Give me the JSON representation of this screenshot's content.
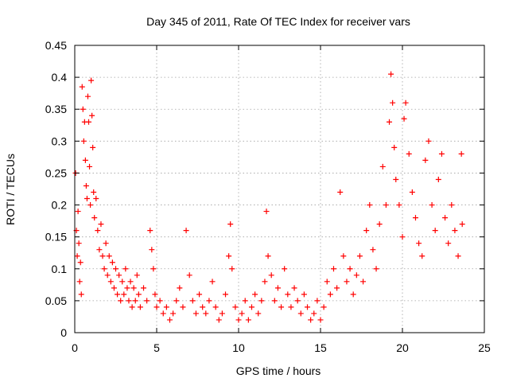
{
  "chart_data": {
    "type": "scatter",
    "title": "Day 345 of 2011, Rate Of TEC Index for receiver vars",
    "xlabel": "GPS time / hours",
    "ylabel": "ROTI / TECUs",
    "xlim": [
      0,
      25
    ],
    "ylim": [
      0,
      0.45
    ],
    "xticks": [
      0,
      5,
      10,
      15,
      20,
      25
    ],
    "xtick_labels": [
      "0",
      "5",
      "10",
      "15",
      "20",
      "25"
    ],
    "yticks": [
      0,
      0.05,
      0.1,
      0.15,
      0.2,
      0.25,
      0.3,
      0.35,
      0.4,
      0.45
    ],
    "ytick_labels": [
      "0",
      "0.05",
      "0.1",
      "0.15",
      "0.2",
      "0.25",
      "0.3",
      "0.35",
      "0.4",
      "0.45"
    ],
    "grid": true,
    "marker": "+",
    "marker_color": "#ff0000",
    "series": [
      {
        "points": [
          [
            0.05,
            0.25
          ],
          [
            0.1,
            0.16
          ],
          [
            0.15,
            0.12
          ],
          [
            0.2,
            0.19
          ],
          [
            0.25,
            0.14
          ],
          [
            0.3,
            0.08
          ],
          [
            0.35,
            0.11
          ],
          [
            0.4,
            0.06
          ],
          [
            0.45,
            0.385
          ],
          [
            0.5,
            0.35
          ],
          [
            0.55,
            0.3
          ],
          [
            0.6,
            0.33
          ],
          [
            0.65,
            0.27
          ],
          [
            0.7,
            0.23
          ],
          [
            0.75,
            0.21
          ],
          [
            0.8,
            0.37
          ],
          [
            0.85,
            0.33
          ],
          [
            0.9,
            0.26
          ],
          [
            0.95,
            0.2
          ],
          [
            1.0,
            0.395
          ],
          [
            1.05,
            0.34
          ],
          [
            1.1,
            0.29
          ],
          [
            1.15,
            0.22
          ],
          [
            1.2,
            0.18
          ],
          [
            1.3,
            0.21
          ],
          [
            1.4,
            0.16
          ],
          [
            1.5,
            0.13
          ],
          [
            1.6,
            0.17
          ],
          [
            1.7,
            0.12
          ],
          [
            1.8,
            0.1
          ],
          [
            1.9,
            0.14
          ],
          [
            2.0,
            0.09
          ],
          [
            2.1,
            0.12
          ],
          [
            2.2,
            0.08
          ],
          [
            2.3,
            0.11
          ],
          [
            2.4,
            0.07
          ],
          [
            2.5,
            0.1
          ],
          [
            2.6,
            0.06
          ],
          [
            2.7,
            0.09
          ],
          [
            2.8,
            0.05
          ],
          [
            2.9,
            0.08
          ],
          [
            3.0,
            0.06
          ],
          [
            3.1,
            0.1
          ],
          [
            3.2,
            0.07
          ],
          [
            3.3,
            0.05
          ],
          [
            3.4,
            0.08
          ],
          [
            3.5,
            0.04
          ],
          [
            3.6,
            0.07
          ],
          [
            3.7,
            0.05
          ],
          [
            3.8,
            0.09
          ],
          [
            3.9,
            0.06
          ],
          [
            4.0,
            0.04
          ],
          [
            4.2,
            0.07
          ],
          [
            4.4,
            0.05
          ],
          [
            4.6,
            0.16
          ],
          [
            4.7,
            0.13
          ],
          [
            4.8,
            0.1
          ],
          [
            4.9,
            0.06
          ],
          [
            5.0,
            0.04
          ],
          [
            5.2,
            0.05
          ],
          [
            5.4,
            0.03
          ],
          [
            5.6,
            0.04
          ],
          [
            5.8,
            0.02
          ],
          [
            6.0,
            0.03
          ],
          [
            6.2,
            0.05
          ],
          [
            6.4,
            0.07
          ],
          [
            6.6,
            0.04
          ],
          [
            6.8,
            0.16
          ],
          [
            7.0,
            0.09
          ],
          [
            7.2,
            0.05
          ],
          [
            7.4,
            0.03
          ],
          [
            7.6,
            0.06
          ],
          [
            7.8,
            0.04
          ],
          [
            8.0,
            0.03
          ],
          [
            8.2,
            0.05
          ],
          [
            8.4,
            0.08
          ],
          [
            8.6,
            0.04
          ],
          [
            8.8,
            0.02
          ],
          [
            9.0,
            0.03
          ],
          [
            9.2,
            0.06
          ],
          [
            9.4,
            0.12
          ],
          [
            9.5,
            0.17
          ],
          [
            9.6,
            0.1
          ],
          [
            9.8,
            0.04
          ],
          [
            10.0,
            0.02
          ],
          [
            10.2,
            0.03
          ],
          [
            10.4,
            0.05
          ],
          [
            10.6,
            0.02
          ],
          [
            10.8,
            0.04
          ],
          [
            11.0,
            0.06
          ],
          [
            11.2,
            0.03
          ],
          [
            11.4,
            0.05
          ],
          [
            11.6,
            0.08
          ],
          [
            11.7,
            0.19
          ],
          [
            11.8,
            0.12
          ],
          [
            12.0,
            0.09
          ],
          [
            12.2,
            0.05
          ],
          [
            12.4,
            0.07
          ],
          [
            12.6,
            0.04
          ],
          [
            12.8,
            0.1
          ],
          [
            13.0,
            0.06
          ],
          [
            13.2,
            0.04
          ],
          [
            13.4,
            0.07
          ],
          [
            13.6,
            0.05
          ],
          [
            13.8,
            0.03
          ],
          [
            14.0,
            0.06
          ],
          [
            14.2,
            0.04
          ],
          [
            14.4,
            0.02
          ],
          [
            14.6,
            0.03
          ],
          [
            14.8,
            0.05
          ],
          [
            15.0,
            0.02
          ],
          [
            15.2,
            0.04
          ],
          [
            15.4,
            0.08
          ],
          [
            15.6,
            0.06
          ],
          [
            15.8,
            0.1
          ],
          [
            16.0,
            0.07
          ],
          [
            16.2,
            0.22
          ],
          [
            16.4,
            0.12
          ],
          [
            16.6,
            0.08
          ],
          [
            16.8,
            0.1
          ],
          [
            17.0,
            0.06
          ],
          [
            17.2,
            0.09
          ],
          [
            17.4,
            0.12
          ],
          [
            17.6,
            0.08
          ],
          [
            17.8,
            0.16
          ],
          [
            18.0,
            0.2
          ],
          [
            18.2,
            0.13
          ],
          [
            18.4,
            0.1
          ],
          [
            18.6,
            0.17
          ],
          [
            18.8,
            0.26
          ],
          [
            19.0,
            0.2
          ],
          [
            19.2,
            0.33
          ],
          [
            19.3,
            0.405
          ],
          [
            19.4,
            0.36
          ],
          [
            19.5,
            0.29
          ],
          [
            19.6,
            0.24
          ],
          [
            19.8,
            0.2
          ],
          [
            20.0,
            0.15
          ],
          [
            20.1,
            0.335
          ],
          [
            20.2,
            0.36
          ],
          [
            20.4,
            0.28
          ],
          [
            20.6,
            0.22
          ],
          [
            20.8,
            0.18
          ],
          [
            21.0,
            0.14
          ],
          [
            21.2,
            0.12
          ],
          [
            21.4,
            0.27
          ],
          [
            21.6,
            0.3
          ],
          [
            21.8,
            0.2
          ],
          [
            22.0,
            0.16
          ],
          [
            22.2,
            0.24
          ],
          [
            22.4,
            0.28
          ],
          [
            22.6,
            0.18
          ],
          [
            22.8,
            0.14
          ],
          [
            23.0,
            0.2
          ],
          [
            23.2,
            0.16
          ],
          [
            23.4,
            0.12
          ],
          [
            23.6,
            0.28
          ],
          [
            23.65,
            0.17
          ]
        ]
      }
    ]
  }
}
